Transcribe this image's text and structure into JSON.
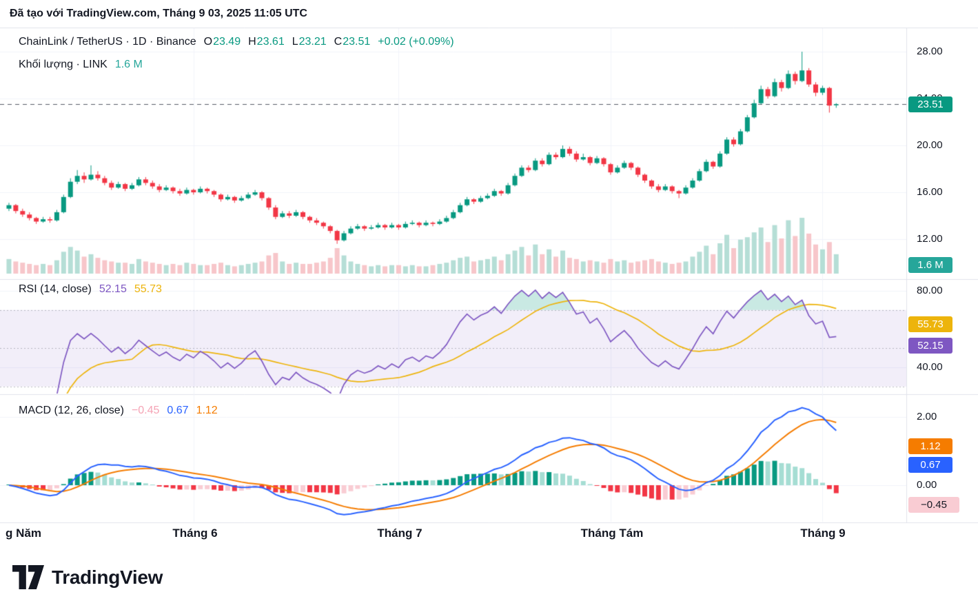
{
  "attribution": "Đã tạo với TradingView.com, Tháng 9 03, 2025 11:05 UTC",
  "legend": {
    "symbol_line": {
      "title": "ChainLink / TetherUS · 1D · Binance",
      "o_label": "O",
      "open": "23.49",
      "h_label": "H",
      "high": "23.61",
      "l_label": "L",
      "low": "23.21",
      "c_label": "C",
      "close": "23.51",
      "change": "+0.02 (+0.09%)"
    },
    "volume_line": {
      "title": "Khối lượng · LINK",
      "value": "1.6 M"
    },
    "rsi_line": {
      "title": "RSI (14, close)",
      "value": "52.15",
      "ma_value": "55.73"
    },
    "macd_line": {
      "title": "MACD (12, 26, close)",
      "hist": "−0.45",
      "macd": "0.67",
      "signal": "1.12"
    }
  },
  "axis": {
    "price_ticks": [
      "28.00",
      "24.00",
      "20.00",
      "16.00",
      "12.00"
    ],
    "rsi_ticks": [
      "80.00",
      "40.00"
    ],
    "macd_ticks": [
      "2.00",
      "0.00"
    ],
    "badges": {
      "price": "23.51",
      "volume": "1.6 M",
      "rsi_ma": "55.73",
      "rsi": "52.15",
      "signal": "1.12",
      "macd": "0.67",
      "hist": "−0.45"
    }
  },
  "time_axis": {
    "labels": [
      "g Năm",
      "Tháng 6",
      "Tháng 7",
      "Tháng Tám",
      "Tháng 9"
    ]
  },
  "footer": {
    "brand": "TradingView"
  },
  "colors": {
    "up": "#089981",
    "down": "#f23645",
    "vol_up": "#b5ded6",
    "vol_down": "#f7c6ca",
    "volume_accent": "#26a69a",
    "rsi": "#7e57c2",
    "rsi_ma": "#edb40c",
    "macd": "#2962ff",
    "signal": "#f57c00",
    "hist_pos": "#089981",
    "hist_pos_weak": "#a5ddd3",
    "hist_neg": "#f23645",
    "hist_neg_weak": "#f9ccd3",
    "hist_badge_bg": "#f9ccd3",
    "hist_legend": "#f5a3b5",
    "last_price_line": "#555a64",
    "grid": "#f0f3fa",
    "separator": "#e0e3eb",
    "band": "rgba(126,87,194,0.10)",
    "band_line": "rgba(120,123,134,0.5)",
    "rsi_fill": "rgba(8,153,129,0.22)",
    "text": "#131722",
    "muted": "#787b86"
  },
  "chart_data": [
    {
      "type": "candlestick",
      "title": "ChainLink / TetherUS · 1D · Binance",
      "timeframe": "1D",
      "exchange": "Binance",
      "x_labels": [
        "Tháng Năm",
        "Tháng 6",
        "Tháng 7",
        "Tháng Tám",
        "Tháng 9"
      ],
      "month_start_indices": [
        27,
        57,
        88,
        119
      ],
      "yticks": [
        12,
        16,
        20,
        24,
        28
      ],
      "ylim": [
        11.2,
        30
      ],
      "last": {
        "open": 23.49,
        "high": 23.61,
        "low": 23.21,
        "close": 23.51,
        "change_abs": 0.02,
        "change_pct": 0.09
      },
      "candles": [
        [
          14.6,
          15.1,
          14.4,
          14.9
        ],
        [
          14.9,
          15.0,
          14.2,
          14.4
        ],
        [
          14.4,
          14.6,
          13.9,
          14.1
        ],
        [
          14.1,
          14.3,
          13.6,
          13.8
        ],
        [
          13.8,
          13.9,
          13.3,
          13.5
        ],
        [
          13.5,
          13.9,
          13.4,
          13.7
        ],
        [
          13.7,
          13.9,
          13.4,
          13.6
        ],
        [
          13.6,
          14.5,
          13.5,
          14.3
        ],
        [
          14.3,
          15.8,
          14.2,
          15.6
        ],
        [
          15.6,
          17.2,
          15.5,
          16.9
        ],
        [
          16.9,
          17.9,
          16.7,
          17.4
        ],
        [
          17.4,
          17.7,
          16.8,
          17.1
        ],
        [
          17.1,
          18.3,
          17.0,
          17.5
        ],
        [
          17.5,
          17.8,
          17.0,
          17.2
        ],
        [
          17.2,
          17.4,
          16.6,
          16.8
        ],
        [
          16.8,
          17.0,
          16.2,
          16.4
        ],
        [
          16.4,
          16.9,
          16.3,
          16.7
        ],
        [
          16.7,
          16.8,
          16.1,
          16.3
        ],
        [
          16.3,
          16.8,
          16.2,
          16.6
        ],
        [
          16.6,
          17.3,
          16.5,
          17.1
        ],
        [
          17.1,
          17.3,
          16.6,
          16.8
        ],
        [
          16.8,
          17.0,
          16.3,
          16.5
        ],
        [
          16.5,
          16.7,
          16.0,
          16.2
        ],
        [
          16.2,
          16.6,
          16.1,
          16.4
        ],
        [
          16.4,
          16.5,
          15.9,
          16.1
        ],
        [
          16.1,
          16.3,
          15.7,
          15.9
        ],
        [
          15.9,
          16.4,
          15.8,
          16.2
        ],
        [
          16.2,
          16.3,
          15.8,
          16.0
        ],
        [
          16.0,
          16.5,
          15.9,
          16.3
        ],
        [
          16.3,
          16.4,
          15.9,
          16.1
        ],
        [
          16.1,
          16.2,
          15.6,
          15.8
        ],
        [
          15.8,
          15.9,
          15.2,
          15.4
        ],
        [
          15.4,
          15.8,
          15.3,
          15.6
        ],
        [
          15.6,
          15.7,
          15.1,
          15.3
        ],
        [
          15.3,
          15.7,
          15.2,
          15.5
        ],
        [
          15.5,
          16.0,
          15.4,
          15.8
        ],
        [
          15.8,
          16.2,
          15.7,
          16.0
        ],
        [
          16.0,
          16.1,
          15.3,
          15.5
        ],
        [
          15.5,
          15.6,
          14.5,
          14.7
        ],
        [
          14.7,
          14.9,
          13.7,
          13.9
        ],
        [
          13.9,
          14.4,
          13.8,
          14.2
        ],
        [
          14.2,
          14.4,
          13.8,
          14.0
        ],
        [
          14.0,
          14.5,
          13.9,
          14.3
        ],
        [
          14.3,
          14.4,
          13.7,
          13.9
        ],
        [
          13.9,
          14.0,
          13.4,
          13.6
        ],
        [
          13.6,
          13.8,
          13.2,
          13.4
        ],
        [
          13.4,
          13.5,
          12.9,
          13.1
        ],
        [
          13.1,
          13.2,
          12.5,
          12.7
        ],
        [
          12.7,
          12.8,
          11.6,
          11.9
        ],
        [
          11.9,
          12.7,
          11.8,
          12.5
        ],
        [
          12.5,
          13.1,
          12.4,
          12.9
        ],
        [
          12.9,
          13.3,
          12.8,
          13.1
        ],
        [
          13.1,
          13.2,
          12.7,
          12.9
        ],
        [
          12.9,
          13.2,
          12.8,
          13.0
        ],
        [
          13.0,
          13.4,
          12.9,
          13.2
        ],
        [
          13.2,
          13.3,
          12.8,
          13.0
        ],
        [
          13.0,
          13.4,
          12.9,
          13.2
        ],
        [
          13.2,
          13.3,
          12.8,
          13.0
        ],
        [
          13.0,
          13.5,
          12.9,
          13.3
        ],
        [
          13.3,
          13.6,
          13.2,
          13.4
        ],
        [
          13.4,
          13.5,
          13.0,
          13.2
        ],
        [
          13.2,
          13.6,
          13.1,
          13.4
        ],
        [
          13.4,
          13.5,
          13.1,
          13.3
        ],
        [
          13.3,
          13.7,
          13.2,
          13.5
        ],
        [
          13.5,
          14.0,
          13.4,
          13.8
        ],
        [
          13.8,
          14.5,
          13.7,
          14.3
        ],
        [
          14.3,
          15.1,
          14.2,
          14.9
        ],
        [
          14.9,
          15.6,
          14.8,
          15.4
        ],
        [
          15.4,
          15.5,
          15.0,
          15.2
        ],
        [
          15.2,
          15.7,
          15.1,
          15.5
        ],
        [
          15.5,
          15.9,
          15.4,
          15.7
        ],
        [
          15.7,
          16.3,
          15.6,
          16.1
        ],
        [
          16.1,
          16.2,
          15.7,
          15.9
        ],
        [
          15.9,
          16.8,
          15.8,
          16.6
        ],
        [
          16.6,
          17.6,
          16.5,
          17.4
        ],
        [
          17.4,
          18.3,
          17.3,
          18.1
        ],
        [
          18.1,
          18.3,
          17.7,
          17.9
        ],
        [
          17.9,
          18.9,
          17.8,
          18.7
        ],
        [
          18.7,
          18.9,
          18.2,
          18.4
        ],
        [
          18.4,
          19.4,
          18.3,
          19.2
        ],
        [
          19.2,
          19.4,
          18.8,
          19.0
        ],
        [
          19.0,
          20.0,
          18.9,
          19.7
        ],
        [
          19.7,
          19.9,
          19.1,
          19.3
        ],
        [
          19.3,
          19.5,
          18.6,
          18.8
        ],
        [
          18.8,
          19.3,
          18.7,
          19.0
        ],
        [
          19.0,
          19.1,
          18.3,
          18.5
        ],
        [
          18.5,
          19.1,
          18.4,
          18.9
        ],
        [
          18.9,
          19.0,
          18.2,
          18.4
        ],
        [
          18.4,
          18.5,
          17.5,
          17.7
        ],
        [
          17.7,
          18.3,
          17.6,
          18.1
        ],
        [
          18.1,
          18.7,
          18.0,
          18.5
        ],
        [
          18.5,
          18.6,
          17.9,
          18.1
        ],
        [
          18.1,
          18.2,
          17.3,
          17.5
        ],
        [
          17.5,
          17.6,
          16.8,
          17.0
        ],
        [
          17.0,
          17.1,
          16.3,
          16.5
        ],
        [
          16.5,
          16.7,
          16.0,
          16.2
        ],
        [
          16.2,
          16.7,
          16.1,
          16.5
        ],
        [
          16.5,
          16.6,
          15.9,
          16.1
        ],
        [
          16.1,
          16.2,
          15.5,
          15.9
        ],
        [
          15.9,
          16.6,
          15.8,
          16.4
        ],
        [
          16.4,
          17.2,
          16.3,
          17.0
        ],
        [
          17.0,
          18.0,
          16.9,
          17.8
        ],
        [
          17.8,
          18.8,
          17.7,
          18.6
        ],
        [
          18.6,
          18.7,
          18.0,
          18.2
        ],
        [
          18.2,
          19.5,
          18.1,
          19.3
        ],
        [
          19.3,
          20.7,
          19.2,
          20.5
        ],
        [
          20.5,
          20.7,
          19.9,
          20.1
        ],
        [
          20.1,
          21.4,
          20.0,
          21.2
        ],
        [
          21.2,
          22.6,
          21.1,
          22.4
        ],
        [
          22.4,
          23.9,
          22.3,
          23.6
        ],
        [
          23.6,
          25.1,
          23.5,
          24.8
        ],
        [
          24.8,
          25.0,
          24.0,
          24.2
        ],
        [
          24.2,
          25.7,
          24.1,
          25.4
        ],
        [
          25.4,
          25.6,
          24.6,
          24.9
        ],
        [
          24.9,
          26.4,
          24.8,
          26.1
        ],
        [
          26.1,
          26.3,
          25.2,
          25.5
        ],
        [
          25.5,
          28.0,
          25.4,
          26.4
        ],
        [
          26.4,
          26.6,
          25.0,
          25.2
        ],
        [
          25.2,
          25.4,
          24.2,
          24.5
        ],
        [
          24.5,
          25.1,
          24.3,
          24.9
        ],
        [
          24.9,
          25.0,
          22.8,
          23.4
        ],
        [
          23.49,
          23.61,
          23.21,
          23.51
        ]
      ]
    },
    {
      "type": "bar",
      "name": "Khối lượng (Volume)",
      "unit": "M",
      "last": 1.6,
      "values": [
        1.2,
        1.0,
        0.9,
        0.8,
        0.7,
        0.8,
        0.7,
        1.1,
        1.8,
        2.2,
        1.9,
        1.4,
        1.6,
        1.3,
        1.1,
        1.0,
        0.9,
        0.9,
        0.8,
        1.2,
        1.0,
        0.9,
        0.8,
        0.7,
        0.8,
        0.7,
        0.9,
        0.8,
        0.7,
        0.7,
        0.8,
        0.9,
        0.7,
        0.6,
        0.7,
        0.8,
        0.9,
        1.0,
        1.5,
        1.7,
        1.0,
        0.8,
        0.9,
        0.8,
        0.8,
        0.9,
        1.0,
        1.3,
        2.1,
        1.5,
        1.0,
        0.8,
        0.7,
        0.6,
        0.7,
        0.6,
        0.7,
        0.7,
        0.6,
        0.7,
        0.6,
        0.6,
        0.7,
        0.8,
        0.9,
        1.1,
        1.3,
        1.4,
        1.0,
        1.1,
        1.2,
        1.4,
        1.1,
        1.6,
        1.9,
        2.2,
        1.5,
        2.4,
        1.6,
        2.0,
        1.4,
        1.9,
        1.3,
        1.2,
        1.0,
        1.1,
        1.0,
        0.9,
        1.2,
        1.0,
        1.1,
        0.9,
        1.0,
        1.1,
        1.2,
        1.0,
        0.9,
        0.8,
        0.9,
        1.0,
        1.4,
        1.8,
        2.3,
        1.6,
        2.5,
        3.2,
        2.1,
        2.8,
        3.0,
        3.4,
        3.8,
        2.6,
        4.0,
        2.9,
        4.4,
        3.1,
        4.6,
        3.3,
        2.4,
        2.0,
        2.6,
        1.6
      ]
    },
    {
      "type": "line",
      "name": "RSI",
      "params": [
        14,
        "close"
      ],
      "computed_from": "candles closes",
      "last": 52.15,
      "ma_last": 55.73,
      "yticks": [
        40,
        80
      ],
      "band_levels": [
        30,
        50,
        70
      ]
    },
    {
      "type": "line+histogram",
      "name": "MACD",
      "params": [
        12,
        26,
        "close"
      ],
      "computed_from": "candles closes",
      "last_macd": 0.67,
      "last_signal": 1.12,
      "last_hist": -0.45,
      "yticks": [
        0,
        2
      ]
    }
  ]
}
